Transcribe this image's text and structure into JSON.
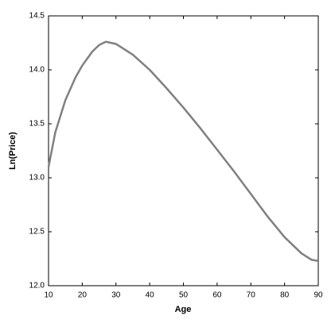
{
  "chart_data": {
    "type": "line",
    "x_label": "Age",
    "y_label": "Ln(Price)",
    "x": [
      10,
      12,
      15,
      18,
      20,
      23,
      25,
      27,
      30,
      35,
      40,
      45,
      50,
      55,
      60,
      65,
      70,
      75,
      80,
      85,
      88,
      90
    ],
    "series": [
      {
        "color": "#808080",
        "values": [
          13.1,
          13.42,
          13.72,
          13.93,
          14.04,
          14.17,
          14.23,
          14.26,
          14.24,
          14.14,
          14.0,
          13.83,
          13.65,
          13.46,
          13.26,
          13.06,
          12.85,
          12.64,
          12.45,
          12.3,
          12.24,
          12.23
        ]
      }
    ],
    "xlim": [
      10,
      90
    ],
    "xticks": [
      10,
      20,
      30,
      40,
      50,
      60,
      70,
      80,
      90
    ],
    "ylim": [
      12.0,
      14.5
    ],
    "yticks": [
      {
        "value": 12,
        "label": "12.0"
      },
      12.5,
      {
        "value": 13,
        "label": "13.0"
      },
      13.5,
      {
        "value": 14,
        "label": "14.0"
      },
      14.5
    ],
    "grid": false
  }
}
